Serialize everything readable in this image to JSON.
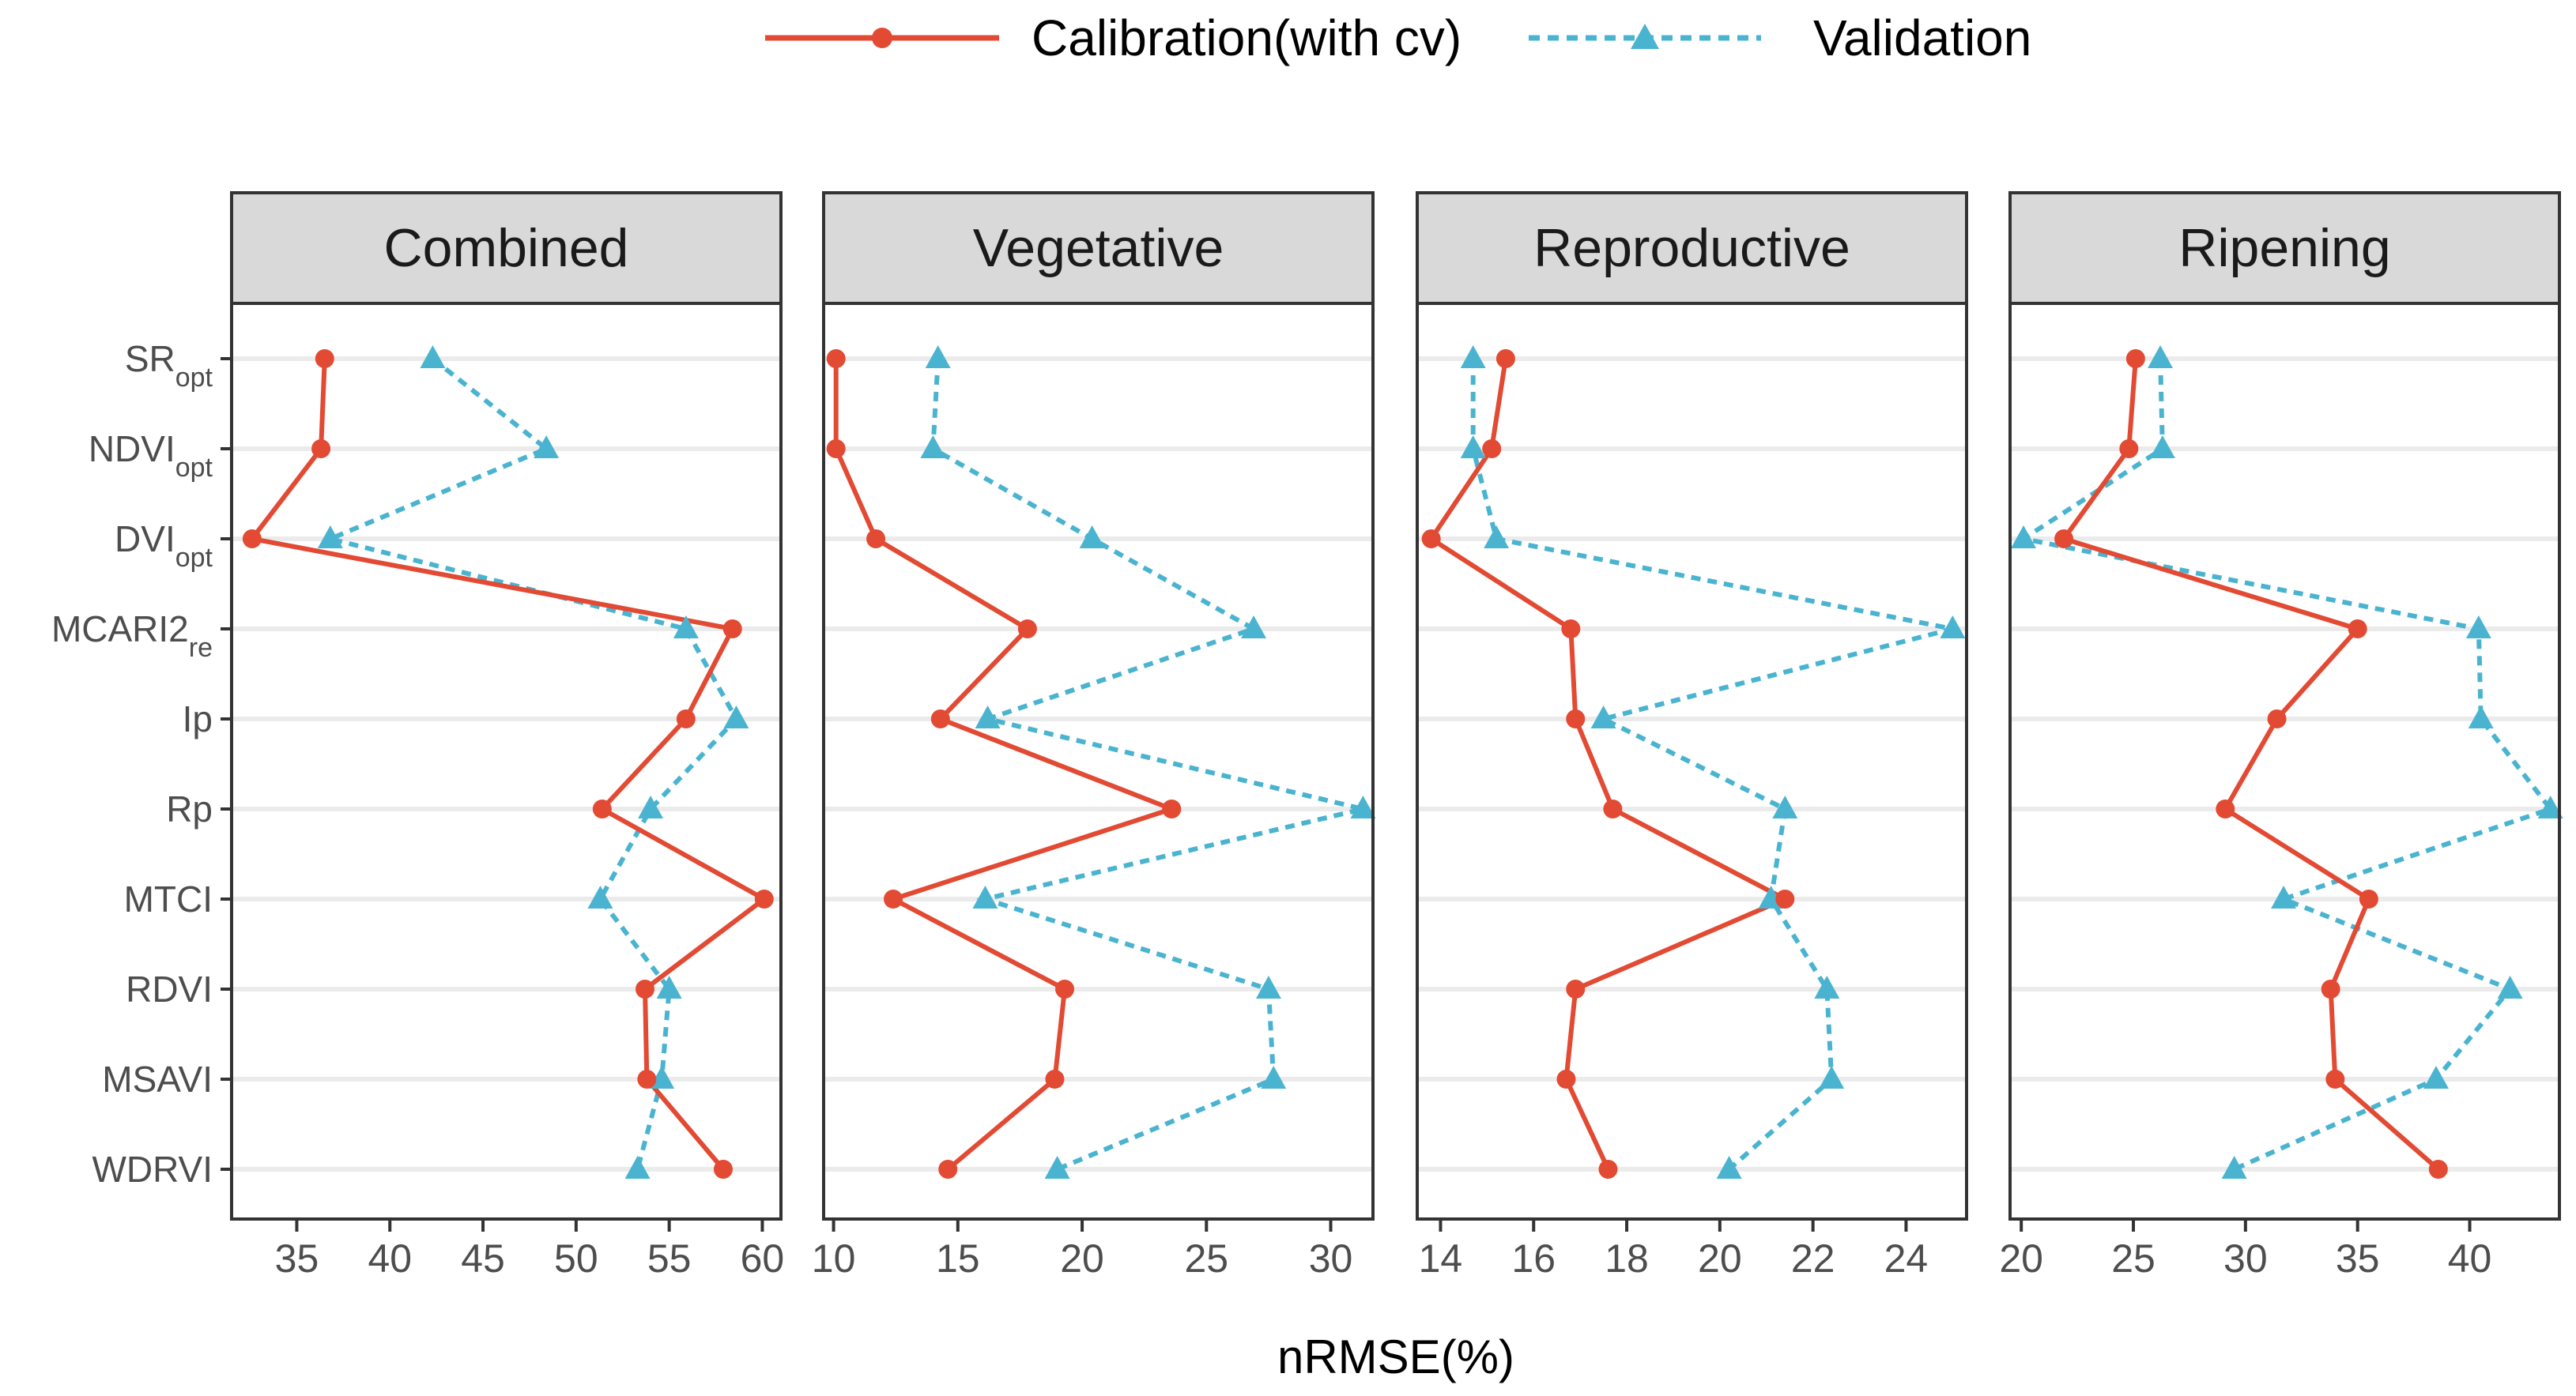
{
  "chart_data": {
    "type": "line",
    "xlabel": "nRMSE(%)",
    "legend": {
      "position": "top",
      "entries": [
        {
          "name": "Calibration(with cv)",
          "color": "#e24a33",
          "marker": "circle",
          "line": "solid"
        },
        {
          "name": "Validation",
          "color": "#4ab4d0",
          "marker": "triangle",
          "line": "dashed"
        }
      ]
    },
    "categories": [
      {
        "base": "SR",
        "sub": "opt"
      },
      {
        "base": "NDVI",
        "sub": "opt"
      },
      {
        "base": "DVI",
        "sub": "opt"
      },
      {
        "base": "MCARI2",
        "sub": "re"
      },
      {
        "base": "Ip",
        "sub": ""
      },
      {
        "base": "Rp",
        "sub": ""
      },
      {
        "base": "MTCI",
        "sub": ""
      },
      {
        "base": "RDVI",
        "sub": ""
      },
      {
        "base": "MSAVI",
        "sub": ""
      },
      {
        "base": "WDRVI",
        "sub": ""
      }
    ],
    "panels": [
      {
        "title": "Combined",
        "xlim": [
          31.5,
          61.0
        ],
        "ticks": [
          35,
          40,
          45,
          50,
          55,
          60
        ],
        "calibration": [
          36.5,
          36.3,
          32.6,
          58.4,
          55.9,
          51.4,
          60.1,
          53.7,
          53.8,
          57.9
        ],
        "validation": [
          42.3,
          48.4,
          36.8,
          55.9,
          58.6,
          54.0,
          51.3,
          55.0,
          54.6,
          53.3
        ]
      },
      {
        "title": "Vegetative",
        "xlim": [
          9.6,
          31.7
        ],
        "ticks": [
          10,
          15,
          20,
          25,
          30
        ],
        "calibration": [
          10.1,
          10.1,
          11.7,
          17.8,
          14.3,
          23.6,
          12.4,
          19.3,
          18.9,
          14.6
        ],
        "validation": [
          14.2,
          14.0,
          20.4,
          26.9,
          16.2,
          31.3,
          16.1,
          27.5,
          27.7,
          19.0
        ]
      },
      {
        "title": "Reproductive",
        "xlim": [
          13.5,
          25.3
        ],
        "ticks": [
          14,
          16,
          18,
          20,
          22,
          24
        ],
        "calibration": [
          15.4,
          15.1,
          13.8,
          16.8,
          16.9,
          17.7,
          21.4,
          16.9,
          16.7,
          17.6
        ],
        "validation": [
          14.7,
          14.7,
          15.2,
          25.0,
          17.5,
          21.4,
          21.1,
          22.3,
          22.4,
          20.2
        ]
      },
      {
        "title": "Ripening",
        "xlim": [
          19.5,
          44.0
        ],
        "ticks": [
          20,
          25,
          30,
          35,
          40
        ],
        "calibration": [
          25.1,
          24.8,
          21.9,
          35.0,
          31.4,
          29.1,
          35.5,
          33.8,
          34.0,
          38.6
        ],
        "validation": [
          26.2,
          26.3,
          20.1,
          40.4,
          40.5,
          43.6,
          31.7,
          41.8,
          38.5,
          29.5
        ]
      }
    ]
  }
}
